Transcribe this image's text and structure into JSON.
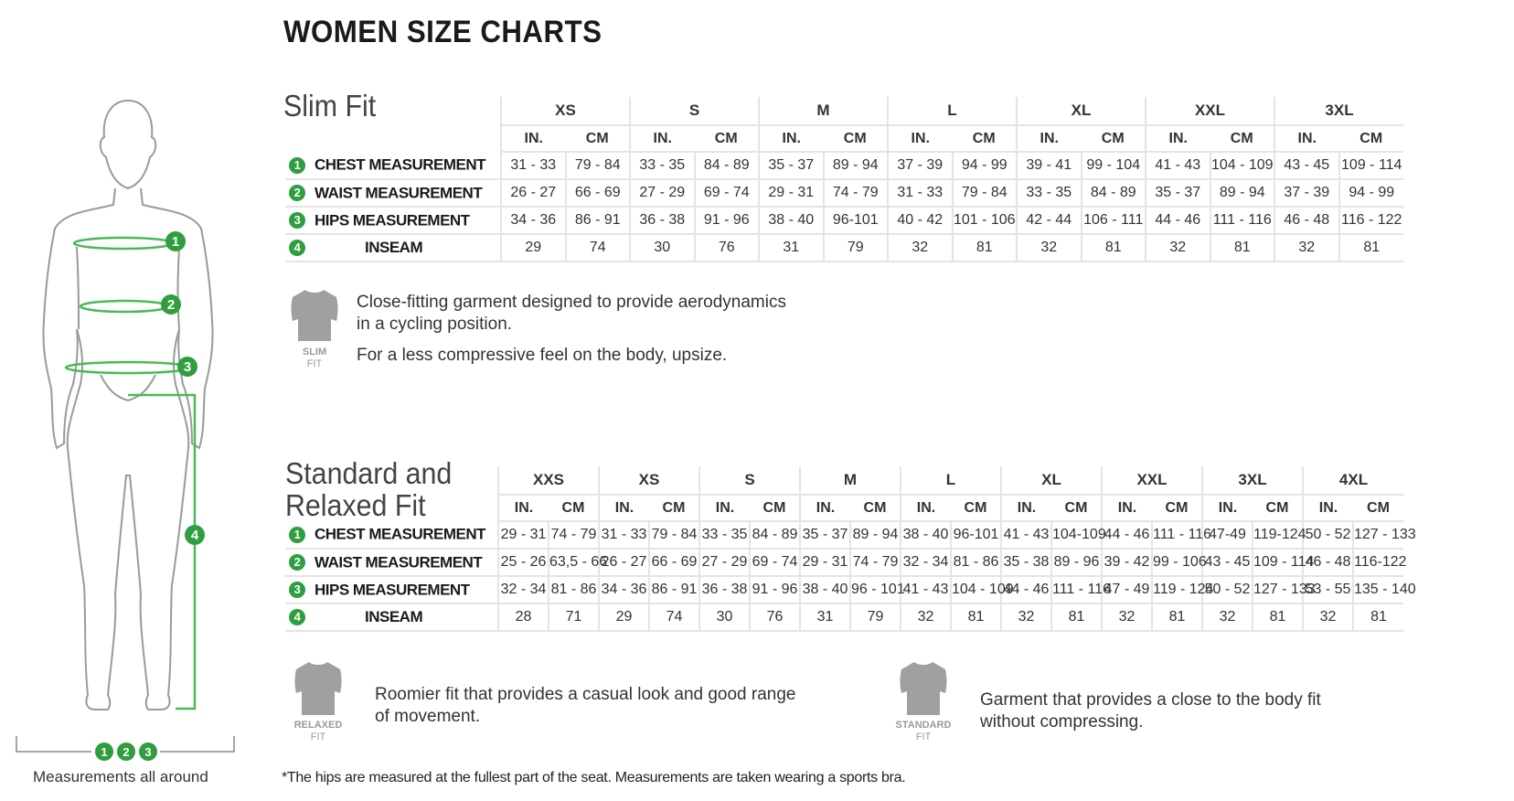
{
  "title": "WOMEN SIZE CHARTS",
  "colors": {
    "accent_green": "#2f9e3f",
    "grid": "#e4e4e4",
    "icon_gray": "#a0a0a0"
  },
  "figure": {
    "markers": [
      "1",
      "2",
      "3",
      "4"
    ],
    "bottom_markers": [
      "1",
      "2",
      "3"
    ],
    "caption": "Measurements all around"
  },
  "unit_labels": {
    "in": "IN.",
    "cm": "CM"
  },
  "slim_fit": {
    "title": "Slim Fit",
    "sizes": [
      "XS",
      "S",
      "M",
      "L",
      "XL",
      "XXL",
      "3XL"
    ],
    "rows": [
      {
        "num": "1",
        "label": "CHEST MEASUREMENT",
        "values": [
          "31 - 33",
          "79 - 84",
          "33 - 35",
          "84 - 89",
          "35 - 37",
          "89 - 94",
          "37 - 39",
          "94 - 99",
          "39 - 41",
          "99 - 104",
          "41 - 43",
          "104 - 109",
          "43 - 45",
          "109 - 114"
        ]
      },
      {
        "num": "2",
        "label": "WAIST MEASUREMENT",
        "values": [
          "26 - 27",
          "66 - 69",
          "27 - 29",
          "69 - 74",
          "29 - 31",
          "74 - 79",
          "31 - 33",
          "79 - 84",
          "33 - 35",
          "84 - 89",
          "35 - 37",
          "89 - 94",
          "37 - 39",
          "94 - 99"
        ]
      },
      {
        "num": "3",
        "label": "HIPS MEASUREMENT",
        "values": [
          "34 - 36",
          "86 - 91",
          "36 - 38",
          "91 - 96",
          "38 - 40",
          "96-101",
          "40 - 42",
          "101 - 106",
          "42 - 44",
          "106 - 111",
          "44 - 46",
          "111 - 116",
          "46 - 48",
          "116 - 122"
        ]
      },
      {
        "num": "4",
        "label": "INSEAM",
        "values": [
          "29",
          "74",
          "30",
          "76",
          "31",
          "79",
          "32",
          "81",
          "32",
          "81",
          "32",
          "81",
          "32",
          "81"
        ]
      }
    ],
    "icon": {
      "name": "slim-fit-jersey-icon",
      "label": "SLIM",
      "sub": "FIT"
    },
    "description": [
      "Close-fitting garment designed to provide aerodynamics",
      "in a cycling position.",
      "For a less compressive feel on the body, upsize."
    ]
  },
  "standard_fit": {
    "title_line1": "Standard and",
    "title_line2": "Relaxed Fit",
    "sizes": [
      "XXS",
      "XS",
      "S",
      "M",
      "L",
      "XL",
      "XXL",
      "3XL",
      "4XL"
    ],
    "rows": [
      {
        "num": "1",
        "label": "CHEST MEASUREMENT",
        "values": [
          "29 - 31",
          "74 - 79",
          "31 - 33",
          "79 - 84",
          "33 - 35",
          "84 - 89",
          "35 - 37",
          "89 - 94",
          "38 - 40",
          "96-101",
          "41 - 43",
          "104-109",
          "44 - 46",
          "111 - 116",
          "47-49",
          "119-124",
          "50 - 52",
          "127 - 133"
        ]
      },
      {
        "num": "2",
        "label": "WAIST MEASUREMENT",
        "values": [
          "25 - 26",
          "63,5 - 66",
          "26 - 27",
          "66 - 69",
          "27 - 29",
          "69 - 74",
          "29 - 31",
          "74 - 79",
          "32 - 34",
          "81 - 86",
          "35 - 38",
          "89 - 96",
          "39 - 42",
          "99 - 106",
          "43 - 45",
          "109 - 114",
          "46 - 48",
          "116-122"
        ]
      },
      {
        "num": "3",
        "label": "HIPS MEASUREMENT",
        "values": [
          "32 - 34",
          "81 - 86",
          "34 - 36",
          "86 - 91",
          "36 - 38",
          "91 - 96",
          "38 - 40",
          "96 - 101",
          "41 - 43",
          "104 - 109",
          "44 - 46",
          "111 - 116",
          "47 - 49",
          "119 - 124",
          "50 - 52",
          "127 - 133",
          "53 - 55",
          "135 - 140"
        ]
      },
      {
        "num": "4",
        "label": "INSEAM",
        "values": [
          "28",
          "71",
          "29",
          "74",
          "30",
          "76",
          "31",
          "79",
          "32",
          "81",
          "32",
          "81",
          "32",
          "81",
          "32",
          "81",
          "32",
          "81"
        ]
      }
    ],
    "relaxed": {
      "label": "RELAXED",
      "sub": "FIT",
      "description": [
        "Roomier fit that provides a casual look and good range",
        "of movement."
      ]
    },
    "standard": {
      "label": "STANDARD",
      "sub": "FIT",
      "description": [
        "Garment that provides a close to the body fit",
        "without compressing."
      ]
    }
  },
  "footnote": "*The hips are measured at the fullest part of the seat. Measurements are taken wearing a sports bra."
}
